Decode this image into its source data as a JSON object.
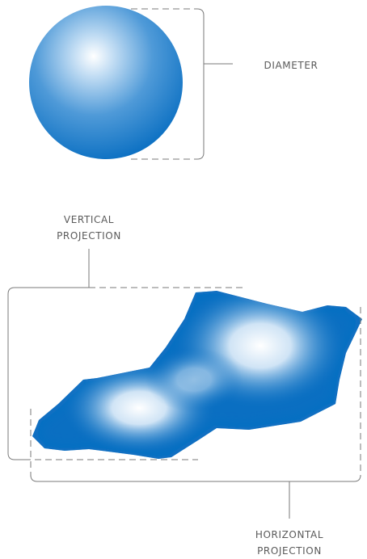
{
  "labels": {
    "diameter": "DIAMETER",
    "vertical_line1": "VERTICAL",
    "vertical_line2": "PROJECTION",
    "horizontal_line1": "HORIZONTAL",
    "horizontal_line2": "PROJECTION"
  },
  "colors": {
    "shape_edge": "#0a6fc2",
    "shape_highlight": "#ffffff",
    "bracket_line": "#7a7a7a",
    "label_text": "#5a5a5a"
  }
}
